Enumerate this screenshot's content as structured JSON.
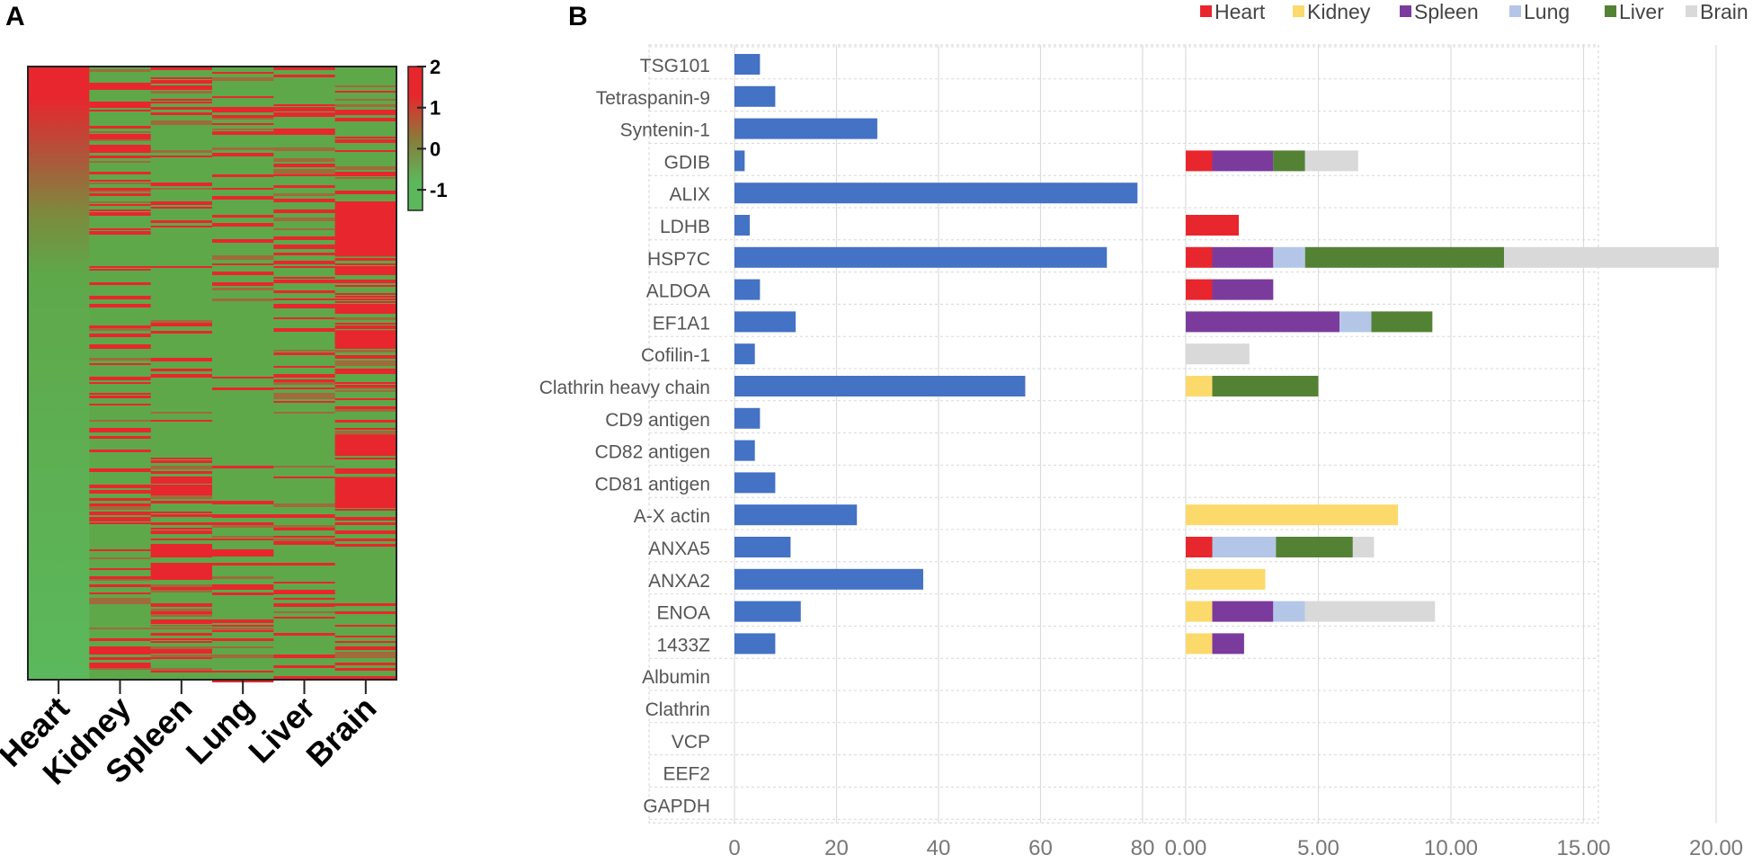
{
  "panel_a": {
    "label": "A",
    "chart_data": {
      "type": "heatmap",
      "columns": [
        "Heart",
        "Kidney",
        "Spleen",
        "Lung",
        "Liver",
        "Brain"
      ],
      "colorbar": {
        "ticks": [
          2,
          1,
          0,
          -1
        ],
        "range": [
          -1.5,
          2
        ],
        "colors": [
          "#5cb85c",
          "#8a7a3a",
          "#e8262d"
        ]
      }
    }
  },
  "panel_b": {
    "label": "B",
    "categories": [
      "TSG101",
      "Tetraspanin-9",
      "Syntenin-1",
      "GDIB",
      "ALIX",
      "LDHB",
      "HSP7C",
      "ALDOA",
      "EF1A1",
      "Cofilin-1",
      "Clathrin heavy chain",
      "CD9 antigen",
      "CD82 antigen",
      "CD81 antigen",
      "A-X actin",
      "ANXA5",
      "ANXA2",
      "ENOA",
      "1433Z",
      "Albumin",
      "Clathrin",
      "VCP",
      "EEF2",
      "GAPDH"
    ],
    "chart_data": [
      {
        "type": "bar",
        "orientation": "horizontal",
        "color": "#4472c4",
        "xlim": [
          0,
          80
        ],
        "xticks": [
          "0",
          "20",
          "40",
          "60",
          "80"
        ],
        "values": [
          5,
          8,
          28,
          2,
          79,
          3,
          73,
          5,
          12,
          4,
          57,
          5,
          4,
          8,
          24,
          11,
          37,
          13,
          8,
          0,
          0,
          0,
          0,
          0
        ]
      },
      {
        "type": "bar",
        "orientation": "horizontal",
        "stacked": true,
        "xlim": [
          0,
          20
        ],
        "xticks": [
          "0.00",
          "5.00",
          "10.00",
          "15.00",
          "20.00"
        ],
        "legend": [
          {
            "name": "Heart",
            "color": "#e8262d"
          },
          {
            "name": "Kidney",
            "color": "#fcd96b"
          },
          {
            "name": "Spleen",
            "color": "#7b3b9d"
          },
          {
            "name": "Lung",
            "color": "#b4c6e7"
          },
          {
            "name": "Liver",
            "color": "#548235"
          },
          {
            "name": "Brain",
            "color": "#d9d9d9"
          }
        ],
        "series": [
          {
            "name": "Heart",
            "values": [
              0,
              0,
              0,
              1.0,
              0,
              2.0,
              1.0,
              1.0,
              0,
              0,
              0,
              0,
              0,
              0,
              0,
              1.0,
              0,
              0,
              0,
              0,
              0,
              0,
              0,
              0
            ]
          },
          {
            "name": "Kidney",
            "values": [
              0,
              0,
              0,
              0,
              0,
              0,
              0,
              0,
              0,
              0,
              1.0,
              0,
              0,
              0,
              8.0,
              0,
              3.0,
              1.0,
              1.0,
              0,
              0,
              0,
              0,
              0
            ]
          },
          {
            "name": "Spleen",
            "values": [
              0,
              0,
              0,
              2.3,
              0,
              0,
              2.3,
              2.3,
              5.8,
              0,
              0,
              0,
              0,
              0,
              0,
              0,
              0,
              2.3,
              1.2,
              0,
              0,
              0,
              0,
              0
            ]
          },
          {
            "name": "Lung",
            "values": [
              0,
              0,
              0,
              0,
              0,
              0,
              1.2,
              0,
              1.2,
              0,
              0,
              0,
              0,
              0,
              0,
              2.4,
              0,
              1.2,
              0,
              0,
              0,
              0,
              0,
              0
            ]
          },
          {
            "name": "Liver",
            "values": [
              0,
              0,
              0,
              1.2,
              0,
              0,
              7.5,
              0,
              2.3,
              0,
              4.0,
              0,
              0,
              0,
              0,
              2.9,
              0,
              0,
              0,
              0,
              0,
              0,
              0,
              0
            ]
          },
          {
            "name": "Brain",
            "values": [
              0,
              0,
              0,
              2.0,
              0,
              0,
              8.1,
              0,
              0,
              2.4,
              0,
              0,
              0,
              0,
              0,
              0.8,
              0,
              4.9,
              0,
              0,
              0,
              0,
              0,
              0
            ]
          }
        ]
      }
    ]
  }
}
